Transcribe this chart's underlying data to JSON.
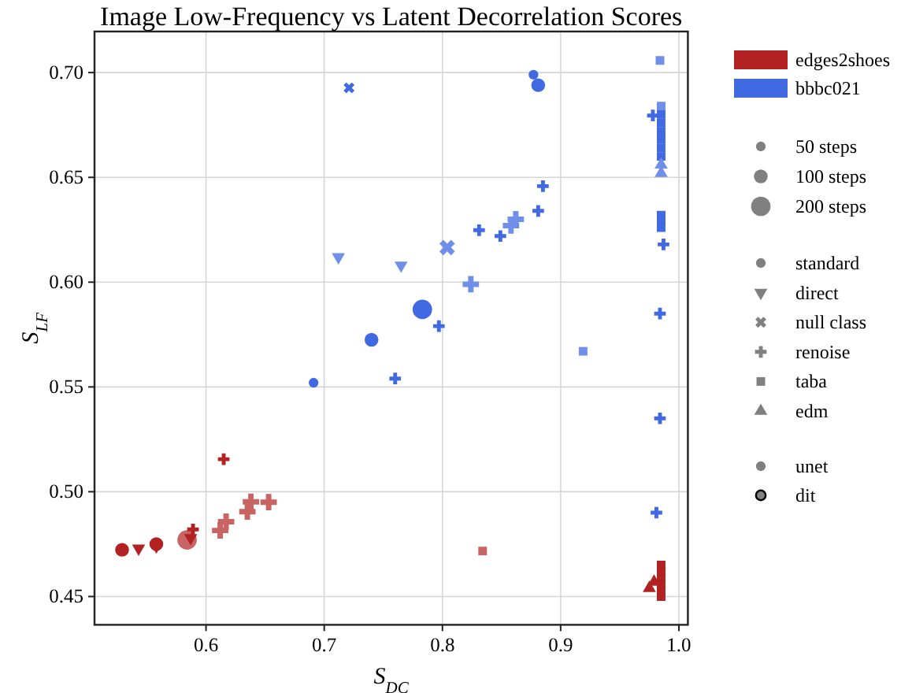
{
  "chart_data": {
    "type": "bubble",
    "title": "Image Low-Frequency vs Latent Decorrelation Scores",
    "xlabel": "S$_{DC}$",
    "ylabel": "S$_{LF}$",
    "xlim": [
      0.5057,
      1.0076
    ],
    "ylim": [
      0.4365,
      0.7196
    ],
    "xticks": [
      0.6,
      0.7,
      0.8,
      0.9,
      {
        "value": 1,
        "label": "1.0"
      }
    ],
    "yticks": [
      0.45,
      {
        "value": 0.5,
        "label": "0.50"
      },
      0.55,
      {
        "value": 0.6,
        "label": "0.60"
      },
      0.65,
      {
        "value": 0.7,
        "label": "0.70"
      }
    ],
    "grid": true,
    "legend": "right",
    "size_legend": [
      {
        "value": 50,
        "label": "50 steps"
      },
      {
        "value": 100,
        "label": "100 steps"
      },
      {
        "value": 200,
        "label": "200 steps"
      }
    ],
    "annotations": [
      "standard",
      "direct",
      "null class",
      "renoise",
      "taba",
      "edm",
      "unet",
      "dit"
    ],
    "series": [
      {
        "name": "edges2shoes",
        "color": "#b22222",
        "marker": "circle",
        "x": [
          0.529,
          0.558,
          0.584
        ],
        "values": [
          0.4723,
          0.475,
          0.477
        ],
        "sizes": [
          100,
          100,
          200
        ],
        "colors": [
          "#b22222",
          "#b22222",
          "#c86464"
        ]
      },
      {
        "marker": "triangle-down",
        "x": [
          0.543,
          0.558,
          0.587
        ],
        "values": [
          0.473,
          0.474,
          0.478
        ],
        "sizes": [
          50,
          50,
          50
        ],
        "colors": [
          "#b22222",
          "#b22222",
          "#b22222"
        ]
      },
      {
        "marker": "cross",
        "x": [
          0.589,
          0.615,
          0.612,
          0.617,
          0.635,
          0.638,
          0.653
        ],
        "values": [
          0.482,
          0.5155,
          0.4815,
          0.4857,
          0.4905,
          0.4952,
          0.495
        ],
        "sizes": [
          50,
          50,
          100,
          100,
          100,
          100,
          100
        ],
        "colors": [
          "#b22222",
          "#b22222",
          "#c86464",
          "#c86464",
          "#c86464",
          "#c86464",
          "#c86464"
        ]
      },
      {
        "marker": "square",
        "x": [
          0.834,
          0.985,
          0.985,
          0.985,
          0.985,
          0.985,
          0.985
        ],
        "values": [
          0.4717,
          0.465,
          0.462,
          0.459,
          0.456,
          0.453,
          0.45
        ],
        "sizes": [
          50,
          50,
          50,
          50,
          50,
          50,
          50
        ],
        "colors": [
          "#c86464",
          "#b22222",
          "#b22222",
          "#b22222",
          "#b22222",
          "#b22222",
          "#b22222"
        ]
      },
      {
        "marker": "triangle",
        "x": [
          0.975,
          0.979
        ],
        "values": [
          0.454,
          0.457
        ],
        "sizes": [
          50,
          50
        ],
        "colors": [
          "#b22222",
          "#b22222"
        ]
      },
      {
        "name": "bbbc021",
        "color": "#4169e1",
        "marker": "circle",
        "x": [
          0.691,
          0.74,
          0.783
        ],
        "values": [
          0.552,
          0.5725,
          0.587
        ],
        "sizes": [
          50,
          100,
          200
        ],
        "colors": [
          "#4169e1",
          "#4169e1",
          "#4169e1"
        ]
      },
      {
        "marker": "circle",
        "x": [
          0.877,
          0.881
        ],
        "values": [
          0.699,
          0.694
        ],
        "sizes": [
          50,
          100
        ],
        "colors": [
          "#4169e1",
          "#4169e1"
        ]
      },
      {
        "marker": "triangle-down",
        "x": [
          0.712,
          0.765
        ],
        "values": [
          0.612,
          0.608
        ],
        "sizes": [
          50,
          50
        ],
        "colors": [
          "#6f8fe8",
          "#6f8fe8"
        ]
      },
      {
        "marker": "x",
        "x": [
          0.804
        ],
        "values": [
          0.6165
        ],
        "sizes": [
          100
        ],
        "colors": [
          "#6f8fe8"
        ]
      },
      {
        "marker": "x",
        "x": [
          0.721
        ],
        "values": [
          0.6927
        ],
        "sizes": [
          50
        ],
        "colors": [
          "#4169e1"
        ]
      },
      {
        "marker": "cross",
        "x": [
          0.885,
          0.881,
          0.858,
          0.862,
          0.849,
          0.831,
          0.824,
          0.797,
          0.76
        ],
        "values": [
          0.6458,
          0.634,
          0.627,
          0.63,
          0.622,
          0.6248,
          0.599,
          0.579,
          0.554
        ],
        "sizes": [
          50,
          50,
          100,
          100,
          50,
          50,
          100,
          50,
          50
        ],
        "colors": [
          "#4169e1",
          "#4169e1",
          "#6f8fe8",
          "#6f8fe8",
          "#4169e1",
          "#4169e1",
          "#6f8fe8",
          "#4169e1",
          "#4169e1"
        ]
      },
      {
        "marker": "cross",
        "x": [
          0.978,
          0.987,
          0.984,
          0.984,
          0.981
        ],
        "values": [
          0.6795,
          0.618,
          0.585,
          0.535,
          0.49
        ],
        "sizes": [
          50,
          50,
          50,
          50,
          50
        ],
        "colors": [
          "#4169e1",
          "#4169e1",
          "#4169e1",
          "#4169e1",
          "#4169e1"
        ]
      },
      {
        "marker": "square",
        "x": [
          0.984,
          0.985,
          0.985,
          0.985,
          0.985,
          0.985,
          0.985,
          0.985
        ],
        "values": [
          0.7058,
          0.684,
          0.68,
          0.676,
          0.672,
          0.668,
          0.664,
          0.66
        ],
        "sizes": [
          50,
          50,
          50,
          50,
          50,
          50,
          50,
          50
        ],
        "colors": [
          "#6f8fe8",
          "#6f8fe8",
          "#4169e1",
          "#4169e1",
          "#4169e1",
          "#4169e1",
          "#4169e1",
          "#4169e1"
        ]
      },
      {
        "marker": "square",
        "x": [
          0.919,
          0.985,
          0.985,
          0.985
        ],
        "values": [
          0.567,
          0.632,
          0.629,
          0.626
        ],
        "sizes": [
          50,
          50,
          50,
          50
        ],
        "colors": [
          "#6f8fe8",
          "#4169e1",
          "#4169e1",
          "#4169e1"
        ]
      },
      {
        "marker": "triangle",
        "x": [
          0.985,
          0.985
        ],
        "values": [
          0.656,
          0.652
        ],
        "sizes": [
          50,
          50
        ],
        "colors": [
          "#6f8fe8",
          "#6f8fe8"
        ]
      }
    ]
  }
}
